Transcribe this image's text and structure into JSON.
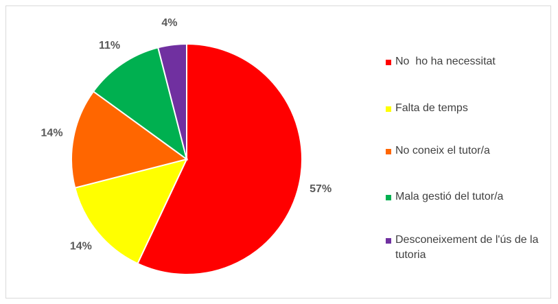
{
  "chart_data": {
    "type": "pie",
    "categories": [
      "No  ho ha necessitat",
      "Falta de temps",
      "No coneix el tutor/a",
      "Mala gestió del tutor/a",
      "Desconeixement de l'ús de la tutoria"
    ],
    "values": [
      57,
      14,
      14,
      11,
      4
    ],
    "value_labels": [
      "57%",
      "14%",
      "14%",
      "11%",
      "4%"
    ],
    "colors": [
      "#ff0000",
      "#ffff00",
      "#ff6600",
      "#00b050",
      "#7030a0"
    ],
    "legend": "right"
  }
}
